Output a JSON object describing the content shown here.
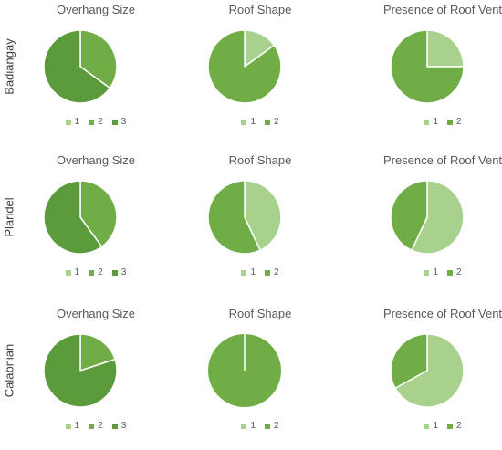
{
  "colors": {
    "1": "#a9d18e",
    "2": "#70ad47",
    "3": "#5b9b3b",
    "default_slice": "#5b9b3b",
    "separator": "#ffffff"
  },
  "chart_data": [
    {
      "type": "pie",
      "title": "Overhang Size",
      "group": "Badiangay",
      "categories": [
        "1",
        "2",
        "3"
      ],
      "values": [
        0,
        35,
        65
      ]
    },
    {
      "type": "pie",
      "title": "Roof Shape",
      "group": "Badiangay",
      "categories": [
        "1",
        "2"
      ],
      "values": [
        15,
        85
      ]
    },
    {
      "type": "pie",
      "title": "Presence of Roof Vent",
      "group": "Badiangay",
      "categories": [
        "1",
        "2"
      ],
      "values": [
        25,
        75
      ]
    },
    {
      "type": "pie",
      "title": "Overhang Size",
      "group": "Plaridel",
      "categories": [
        "1",
        "2",
        "3"
      ],
      "values": [
        0,
        40,
        60
      ]
    },
    {
      "type": "pie",
      "title": "Roof Shape",
      "group": "Plaridel",
      "categories": [
        "1",
        "2"
      ],
      "values": [
        43,
        57
      ]
    },
    {
      "type": "pie",
      "title": "Presence of Roof Vent",
      "group": "Plaridel",
      "categories": [
        "1",
        "2"
      ],
      "values": [
        57,
        43
      ]
    },
    {
      "type": "pie",
      "title": "Overhang Size",
      "group": "Calabnian",
      "categories": [
        "1",
        "2",
        "3"
      ],
      "values": [
        0,
        20,
        80
      ]
    },
    {
      "type": "pie",
      "title": "Roof Shape",
      "group": "Calabnian",
      "categories": [
        "1",
        "2"
      ],
      "values": [
        0,
        100
      ]
    },
    {
      "type": "pie",
      "title": "Presence of Roof Vent",
      "group": "Calabnian",
      "categories": [
        "1",
        "2"
      ],
      "values": [
        67,
        33
      ]
    }
  ]
}
